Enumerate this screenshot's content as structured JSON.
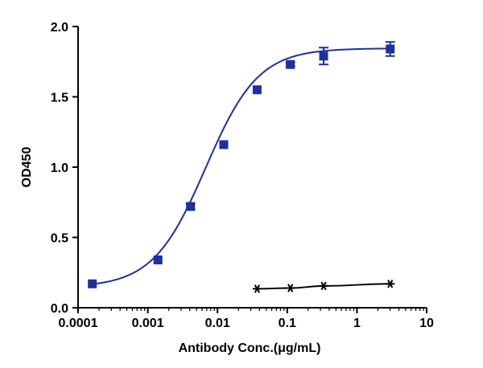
{
  "chart_data": {
    "type": "scatter",
    "xlabel": "Antibody Conc.(μg/mL)",
    "ylabel": "OD450",
    "x_scale": "log",
    "xlim": [
      0.0001,
      10
    ],
    "ylim": [
      0,
      2.0
    ],
    "x_ticks": [
      "0.0001",
      "0.001",
      "0.01",
      "0.1",
      "1",
      "10"
    ],
    "y_ticks": [
      "0.0",
      "0.5",
      "1.0",
      "1.5",
      "2.0"
    ],
    "grid": false,
    "series": [
      {
        "marker": "square",
        "color": "#1f2f9f",
        "points": [
          {
            "x": 0.00016,
            "y": 0.17,
            "err": 0.0
          },
          {
            "x": 0.0014,
            "y": 0.34,
            "err": 0.0
          },
          {
            "x": 0.0041,
            "y": 0.72,
            "err": 0.02
          },
          {
            "x": 0.0123,
            "y": 1.16,
            "err": 0.0
          },
          {
            "x": 0.037,
            "y": 1.55,
            "err": 0.0
          },
          {
            "x": 0.111,
            "y": 1.73,
            "err": 0.015
          },
          {
            "x": 0.333,
            "y": 1.79,
            "err": 0.06
          },
          {
            "x": 3.0,
            "y": 1.84,
            "err": 0.05
          }
        ],
        "fit": {
          "bottom": 0.145,
          "top": 1.845,
          "logEC50": -2.17,
          "hill": 1.15
        }
      },
      {
        "marker": "asterisk",
        "color": "#000000",
        "points": [
          {
            "x": 0.037,
            "y": 0.135
          },
          {
            "x": 0.111,
            "y": 0.14
          },
          {
            "x": 0.333,
            "y": 0.155
          },
          {
            "x": 3.0,
            "y": 0.17
          }
        ]
      }
    ]
  }
}
